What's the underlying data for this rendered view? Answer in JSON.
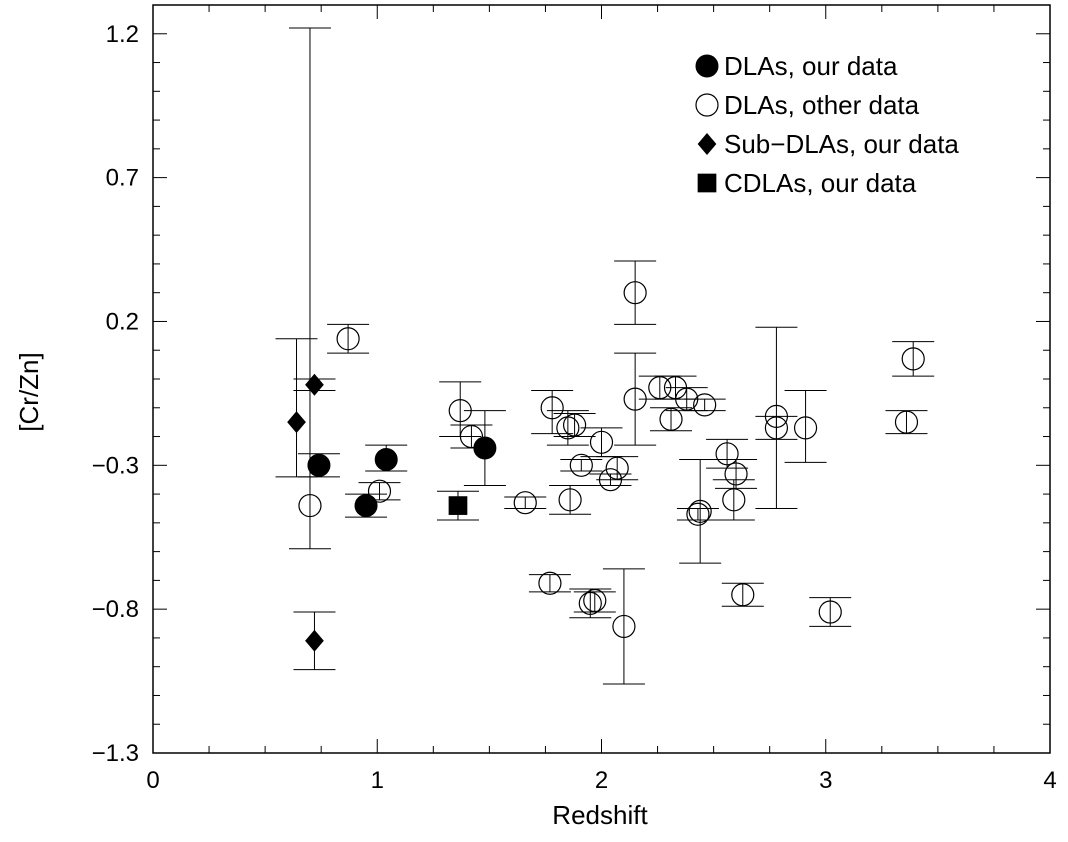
{
  "chart_data": {
    "type": "scatter",
    "title": "",
    "xlabel": "Redshift",
    "ylabel": "[Cr/Zn]",
    "xlim": [
      0,
      4
    ],
    "ylim": [
      -1.3,
      1.3
    ],
    "xticks": [
      0,
      1,
      2,
      3,
      4
    ],
    "xtick_labels": [
      "0",
      "1",
      "2",
      "3",
      "4"
    ],
    "yticks": [
      -1.3,
      -0.8,
      -0.3,
      0.2,
      0.7,
      1.2
    ],
    "ytick_labels": [
      "−1.3",
      "−0.8",
      "−0.3",
      "0.2",
      "0.7",
      "1.2"
    ],
    "grid": false,
    "legend_position": "top-right",
    "series": [
      {
        "name": "DLAs, our data",
        "marker": "filled-circle",
        "points": [
          {
            "x": 0.74,
            "y": -0.3,
            "ylo": -0.34,
            "yhi": -0.26
          },
          {
            "x": 0.95,
            "y": -0.44,
            "ylo": -0.48,
            "yhi": -0.4
          },
          {
            "x": 1.04,
            "y": -0.28,
            "ylo": -0.32,
            "yhi": -0.23
          },
          {
            "x": 1.48,
            "y": -0.24,
            "ylo": -0.37,
            "yhi": -0.11
          }
        ]
      },
      {
        "name": "DLAs, other data",
        "marker": "open-circle",
        "points": [
          {
            "x": 0.7,
            "y": -0.44,
            "ylo": -0.59,
            "yhi": 1.22
          },
          {
            "x": 0.87,
            "y": 0.14,
            "ylo": 0.09,
            "yhi": 0.19
          },
          {
            "x": 1.01,
            "y": -0.39,
            "ylo": -0.42,
            "yhi": -0.36
          },
          {
            "x": 1.37,
            "y": -0.11,
            "ylo": -0.2,
            "yhi": -0.01
          },
          {
            "x": 1.42,
            "y": -0.2,
            "ylo": -0.24,
            "yhi": -0.16
          },
          {
            "x": 1.66,
            "y": -0.43,
            "ylo": -0.45,
            "yhi": -0.41
          },
          {
            "x": 1.77,
            "y": -0.71,
            "ylo": -0.74,
            "yhi": -0.68
          },
          {
            "x": 1.78,
            "y": -0.1,
            "ylo": -0.19,
            "yhi": -0.04
          },
          {
            "x": 1.85,
            "y": -0.17,
            "ylo": -0.23,
            "yhi": -0.11
          },
          {
            "x": 1.86,
            "y": -0.42,
            "ylo": -0.47,
            "yhi": -0.37
          },
          {
            "x": 1.88,
            "y": -0.16,
            "ylo": -0.2,
            "yhi": -0.12
          },
          {
            "x": 1.91,
            "y": -0.3,
            "ylo": -0.32,
            "yhi": -0.28
          },
          {
            "x": 1.95,
            "y": -0.78,
            "ylo": -0.83,
            "yhi": -0.73
          },
          {
            "x": 1.97,
            "y": -0.77,
            "ylo": -0.81,
            "yhi": -0.74
          },
          {
            "x": 2.0,
            "y": -0.22,
            "ylo": -0.27,
            "yhi": -0.17
          },
          {
            "x": 2.04,
            "y": -0.35,
            "ylo": -0.37,
            "yhi": -0.33
          },
          {
            "x": 2.07,
            "y": -0.31,
            "ylo": -0.35,
            "yhi": -0.27
          },
          {
            "x": 2.1,
            "y": -0.86,
            "ylo": -1.06,
            "yhi": -0.66
          },
          {
            "x": 2.15,
            "y": 0.3,
            "ylo": 0.19,
            "yhi": 0.41
          },
          {
            "x": 2.15,
            "y": -0.07,
            "ylo": -0.23,
            "yhi": 0.09
          },
          {
            "x": 2.26,
            "y": -0.03,
            "ylo": -0.07,
            "yhi": 0.01
          },
          {
            "x": 2.31,
            "y": -0.14,
            "ylo": -0.18,
            "yhi": -0.1
          },
          {
            "x": 2.33,
            "y": -0.03,
            "ylo": -0.07,
            "yhi": 0.01
          },
          {
            "x": 2.38,
            "y": -0.07,
            "ylo": -0.11,
            "yhi": -0.03
          },
          {
            "x": 2.43,
            "y": -0.47,
            "ylo": -0.49,
            "yhi": -0.45
          },
          {
            "x": 2.44,
            "y": -0.46,
            "ylo": -0.64,
            "yhi": -0.28
          },
          {
            "x": 2.46,
            "y": -0.09,
            "ylo": -0.11,
            "yhi": -0.07
          },
          {
            "x": 2.56,
            "y": -0.26,
            "ylo": -0.31,
            "yhi": -0.21
          },
          {
            "x": 2.59,
            "y": -0.42,
            "ylo": -0.49,
            "yhi": -0.35
          },
          {
            "x": 2.6,
            "y": -0.33,
            "ylo": -0.38,
            "yhi": -0.28
          },
          {
            "x": 2.63,
            "y": -0.75,
            "ylo": -0.79,
            "yhi": -0.71
          },
          {
            "x": 2.78,
            "y": -0.13,
            "ylo": -0.45,
            "yhi": 0.18
          },
          {
            "x": 2.78,
            "y": -0.17,
            "ylo": -0.21,
            "yhi": -0.13
          },
          {
            "x": 2.91,
            "y": -0.17,
            "ylo": -0.29,
            "yhi": -0.04
          },
          {
            "x": 3.02,
            "y": -0.81,
            "ylo": -0.86,
            "yhi": -0.76
          },
          {
            "x": 3.36,
            "y": -0.15,
            "ylo": -0.19,
            "yhi": -0.11
          },
          {
            "x": 3.39,
            "y": 0.07,
            "ylo": 0.01,
            "yhi": 0.13
          }
        ]
      },
      {
        "name": "Sub−DLAs, our data",
        "marker": "filled-diamond",
        "points": [
          {
            "x": 0.64,
            "y": -0.15,
            "ylo": -0.34,
            "yhi": 0.14
          },
          {
            "x": 0.72,
            "y": -0.02,
            "ylo": -0.04,
            "yhi": 0.0
          },
          {
            "x": 0.72,
            "y": -0.91,
            "ylo": -1.01,
            "yhi": -0.81
          }
        ]
      },
      {
        "name": "CDLAs, our data",
        "marker": "filled-square",
        "points": [
          {
            "x": 1.36,
            "y": -0.44,
            "ylo": -0.49,
            "yhi": -0.39
          }
        ]
      }
    ]
  }
}
